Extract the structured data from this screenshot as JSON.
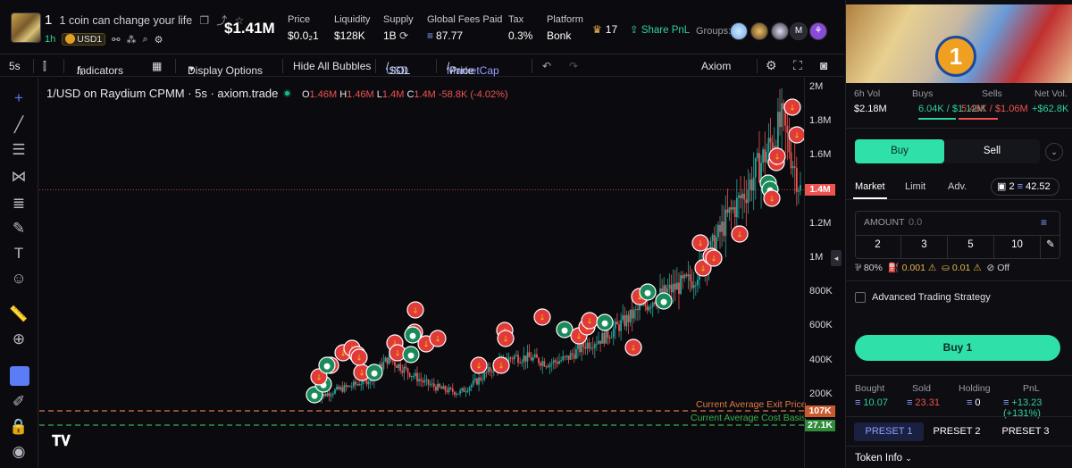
{
  "header": {
    "token_ticker": "1",
    "token_name": "1 coin can change your life",
    "age": "1h",
    "usd_badge": "USD1",
    "market_cap": "$1.41M",
    "stats": [
      {
        "label": "Price",
        "value": "$0.0₂1"
      },
      {
        "label": "Liquidity",
        "value": "$128K"
      },
      {
        "label": "Supply",
        "value": "1B"
      },
      {
        "label": "Global Fees Paid",
        "value": "87.77"
      },
      {
        "label": "Tax",
        "value": "0.3%"
      },
      {
        "label": "Platform",
        "value": "Bonk"
      }
    ],
    "crown_count": "17",
    "share_label": "Share PnL",
    "groups_label": "Groups:",
    "group_m": "M"
  },
  "toolbar": {
    "interval": "5s",
    "indicators": "Indicators",
    "display_options": "Display Options",
    "hide_bubbles": "Hide All Bubbles",
    "usd": "USD",
    "sol": "SOL",
    "marketcap": "MarketCap",
    "price": "Price",
    "provider": "Axiom"
  },
  "chart": {
    "legend_title": "1/USD on Raydium CPMM · 5s · axiom.trade",
    "o_label": "O",
    "o_val": "1.46M",
    "h_label": "H",
    "h_val": "1.46M",
    "l_label": "L",
    "l_val": "1.4M",
    "c_label": "C",
    "c_val": "1.4M",
    "change": "-58.8K (-4.02%)",
    "y_ticks": [
      "2M",
      "1.8M",
      "1.6M",
      "1.4M",
      "1.2M",
      "1M",
      "800K",
      "600K",
      "400K",
      "200K"
    ],
    "current_badge": "1.4M",
    "exit_badge": "107K",
    "cost_badge": "27.1K",
    "exit_label": "Current Average Exit Price",
    "cost_label": "Current Average Cost Basis"
  },
  "chart_data": {
    "type": "line",
    "title": "1/USD on Raydium CPMM · 5s · axiom.trade",
    "ylim": [
      0,
      2000000
    ],
    "ylabel": "MarketCap (USD)",
    "values": [
      0,
      190000,
      230000,
      260000,
      300000,
      420000,
      350000,
      280000,
      240000,
      220000,
      290000,
      380000,
      430000,
      420000,
      390000,
      420000,
      500000,
      540000,
      620000,
      700000,
      780000,
      830000,
      880000,
      1050000,
      1250000,
      1400000,
      1600000,
      1800000,
      1400000
    ],
    "current": 1400000,
    "avg_exit": 107000,
    "avg_cost": 27100
  },
  "right": {
    "volume": {
      "label": "6h Vol",
      "value": "$2.18M"
    },
    "buys": {
      "label": "Buys",
      "value": "6.04K / $1.12M"
    },
    "sells": {
      "label": "Sells",
      "value": "5.48K / $1.06M"
    },
    "net": {
      "label": "Net Vol.",
      "value": "+$62.8K"
    },
    "buy_tab": "Buy",
    "sell_tab": "Sell",
    "order_tabs": [
      "Market",
      "Limit",
      "Adv."
    ],
    "wallet_count": "2",
    "wallet_balance": "42.52",
    "amount_label": "AMOUNT",
    "amount_placeholder": "0.0",
    "quick_amounts": [
      "2",
      "3",
      "5",
      "10"
    ],
    "slippage": "80%",
    "priority": "0.001",
    "bribe": "0.01",
    "mev": "Off",
    "advanced_label": "Advanced Trading Strategy",
    "buy_button": "Buy 1",
    "pnl": [
      {
        "label": "Bought",
        "value": "10.07"
      },
      {
        "label": "Sold",
        "value": "23.31"
      },
      {
        "label": "Holding",
        "value": "0"
      },
      {
        "label": "PnL",
        "value": "+13.23 (+131%)"
      }
    ],
    "presets": [
      "PRESET 1",
      "PRESET 2",
      "PRESET 3"
    ],
    "token_info": "Token Info"
  },
  "colors": {
    "accent": "#2fe0a8",
    "up": "#26a69a",
    "down": "#ef5350",
    "usd": "#8fa0ff"
  }
}
